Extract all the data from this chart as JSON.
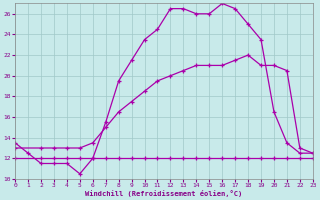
{
  "xlabel": "Windchill (Refroidissement éolien,°C)",
  "bg_color": "#c8eaea",
  "grid_color": "#a0c8c8",
  "line_color": "#aa00aa",
  "xmin": 0,
  "xmax": 23,
  "ymin": 10,
  "ymax": 27,
  "xticks": [
    0,
    1,
    2,
    3,
    4,
    5,
    6,
    7,
    8,
    9,
    10,
    11,
    12,
    13,
    14,
    15,
    16,
    17,
    18,
    19,
    20,
    21,
    22,
    23
  ],
  "yticks": [
    10,
    12,
    14,
    16,
    18,
    20,
    22,
    24,
    26
  ],
  "curve1_x": [
    0,
    1,
    2,
    3,
    4,
    5,
    6,
    7,
    8,
    9,
    10,
    11,
    12,
    13,
    14,
    15,
    16,
    17,
    18,
    19,
    20,
    21,
    22,
    23
  ],
  "curve1_y": [
    13.5,
    12.5,
    11.5,
    11.5,
    11.5,
    10.5,
    12.0,
    15.5,
    19.5,
    21.5,
    23.5,
    24.5,
    26.5,
    26.5,
    26.0,
    26.0,
    27.0,
    26.5,
    25.0,
    23.5,
    16.5,
    13.5,
    12.5,
    12.5
  ],
  "curve2_x": [
    0,
    2,
    3,
    4,
    5,
    6,
    7,
    8,
    9,
    10,
    11,
    12,
    13,
    14,
    15,
    16,
    17,
    18,
    19,
    20,
    21,
    22,
    23
  ],
  "curve2_y": [
    13.0,
    13.0,
    13.0,
    13.0,
    13.0,
    13.5,
    15.0,
    16.5,
    17.5,
    18.5,
    19.5,
    20.0,
    20.5,
    21.0,
    21.0,
    21.0,
    21.5,
    22.0,
    21.0,
    21.0,
    20.5,
    13.0,
    12.5
  ],
  "curve3_x": [
    0,
    2,
    3,
    4,
    5,
    6,
    7,
    8,
    9,
    10,
    11,
    12,
    13,
    14,
    15,
    16,
    17,
    18,
    19,
    20,
    21,
    22,
    23
  ],
  "curve3_y": [
    12.0,
    12.0,
    12.0,
    12.0,
    12.0,
    12.0,
    12.0,
    12.0,
    12.0,
    12.0,
    12.0,
    12.0,
    12.0,
    12.0,
    12.0,
    12.0,
    12.0,
    12.0,
    12.0,
    12.0,
    12.0,
    12.0,
    12.0
  ]
}
